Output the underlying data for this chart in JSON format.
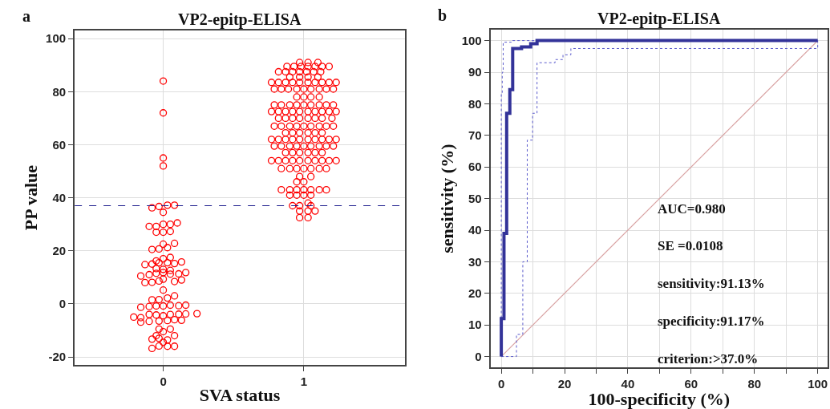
{
  "chart_data": [
    {
      "type": "scatter",
      "title": "VP2-epitp-ELISA",
      "xlabel": "SVA status",
      "ylabel": "PP value",
      "annotations": [
        "a"
      ],
      "xlim": [
        -0.63,
        1.72
      ],
      "xticks": [
        0,
        1
      ],
      "ylim": [
        -23,
        103
      ],
      "yticks": [
        -20,
        0,
        20,
        40,
        60,
        80,
        100
      ],
      "grid": true,
      "marker": "circle",
      "ref_lines": [
        {
          "axis": "y",
          "value": 37,
          "color": "#1a1a8c",
          "line_style": "dashed"
        }
      ],
      "series": [
        {
          "color": "#ff0000",
          "x": [
            0,
            0,
            0,
            0,
            -0.08,
            -0.03,
            0.03,
            0.08,
            0,
            -0.1,
            -0.05,
            0,
            0.05,
            0.1,
            -0.05,
            0,
            0.05,
            -0.08,
            -0.03,
            0,
            0.03,
            0.08,
            -0.05,
            0,
            0.05,
            -0.13,
            -0.08,
            -0.03,
            0.03,
            0.08,
            0.13,
            -0.05,
            0,
            0.05,
            -0.16,
            -0.1,
            -0.05,
            0,
            0.05,
            0.11,
            0.16,
            0,
            -0.13,
            -0.08,
            -0.03,
            0.08,
            0.13,
            0,
            0.08,
            0.03,
            -0.08,
            -0.03,
            -0.16,
            -0.1,
            -0.05,
            0,
            0.05,
            0.11,
            0.16,
            -0.21,
            -0.16,
            -0.1,
            -0.05,
            0,
            0.05,
            0.11,
            0.16,
            0.24,
            -0.16,
            -0.1,
            -0.03,
            0.03,
            0.08,
            0.13,
            -0.03,
            0,
            0.05,
            -0.05,
            0.08,
            -0.08,
            -0.03,
            0.03,
            0,
            -0.08,
            -0.03,
            0.03,
            0.08
          ],
          "values": [
            84,
            72,
            55,
            52,
            36.2,
            36.7,
            37.2,
            37.2,
            34.5,
            29.2,
            29.2,
            30,
            30,
            30.5,
            27,
            27,
            27.3,
            20.5,
            20.7,
            22.5,
            21.2,
            22.8,
            16.2,
            17,
            17.5,
            14.8,
            15,
            15.5,
            15.5,
            15.2,
            15.8,
            13.3,
            13,
            12.6,
            10.5,
            11,
            11.5,
            11.8,
            11.2,
            11.3,
            11.8,
            9.3,
            8,
            8.1,
            8.6,
            8.4,
            9,
            5.2,
            3,
            2.2,
            1.5,
            1.6,
            -1.3,
            -1,
            -0.8,
            -0.8,
            -0.5,
            -0.7,
            -0.5,
            -5,
            -5.2,
            -4,
            -4.2,
            -4.5,
            -4,
            -3.9,
            -3.8,
            -3.7,
            -6.9,
            -6.6,
            -6.5,
            -6.3,
            -6,
            -6.2,
            -9.5,
            -10.5,
            -9.5,
            -12,
            -12,
            -13.3,
            -13,
            -13.6,
            -14.5,
            -16.8,
            -15.9,
            -16,
            -16
          ]
        },
        {
          "color": "#ff0000",
          "x": [
            0.97,
            1.03,
            1.1,
            0.88,
            0.93,
            0.98,
            1.03,
            1.08,
            1.13,
            1.18,
            0.82,
            0.87,
            0.92,
            0.97,
            1.02,
            1.07,
            1.12,
            0.9,
            0.97,
            1.03,
            1.1,
            0.77,
            0.82,
            0.87,
            0.92,
            0.97,
            1.03,
            1.08,
            1.13,
            1.18,
            1.23,
            0.79,
            0.84,
            0.89,
            0.95,
            1.0,
            1.05,
            1.11,
            1.16,
            1.21,
            0.95,
            1.0,
            1.05,
            1.11,
            0.79,
            0.84,
            0.9,
            0.95,
            1.0,
            1.05,
            1.11,
            1.16,
            1.21,
            0.77,
            0.82,
            0.87,
            0.92,
            0.97,
            1.03,
            1.08,
            1.13,
            1.18,
            1.23,
            0.82,
            0.87,
            0.92,
            0.97,
            1.03,
            1.08,
            1.13,
            1.2,
            0.79,
            0.84,
            0.9,
            0.95,
            1.0,
            1.05,
            1.11,
            1.16,
            1.21,
            0.87,
            0.92,
            0.97,
            1.03,
            1.08,
            1.13,
            0.77,
            0.82,
            0.87,
            0.92,
            0.97,
            1.03,
            1.08,
            1.13,
            1.18,
            1.23,
            0.79,
            0.84,
            0.9,
            0.95,
            1.0,
            1.05,
            1.11,
            1.16,
            1.21,
            0.87,
            0.92,
            0.97,
            1.03,
            1.08,
            1.13,
            0.77,
            0.82,
            0.87,
            0.92,
            0.97,
            1.03,
            1.08,
            1.13,
            1.18,
            1.23,
            0.84,
            0.9,
            0.95,
            1.0,
            1.05,
            1.11,
            1.16,
            0.97,
            1.05,
            0.95,
            1.0,
            0.84,
            0.9,
            0.95,
            1.0,
            1.05,
            1.11,
            1.16,
            0.9,
            0.95,
            1.0,
            1.05,
            1.03,
            0.92,
            0.97,
            1.05,
            0.97,
            1.03,
            1.08,
            0.97,
            1.03
          ],
          "values": [
            91,
            91,
            91,
            89.5,
            89.5,
            89.5,
            89.5,
            89.5,
            89.5,
            89.5,
            87.5,
            87.5,
            87.5,
            87.5,
            87.5,
            87.5,
            87.5,
            85.5,
            85.5,
            85.5,
            85.5,
            83.5,
            83.5,
            83.5,
            83.5,
            83.5,
            83.5,
            83.5,
            83.5,
            83.5,
            83.5,
            81,
            81,
            81,
            81,
            81,
            81,
            81,
            81,
            81,
            78,
            78,
            78,
            78,
            75,
            75,
            75,
            75,
            75,
            75,
            75,
            75,
            75,
            72.5,
            72.5,
            72.5,
            72.5,
            72.5,
            72.5,
            72.5,
            72.5,
            72.5,
            72.5,
            70,
            70,
            70,
            70,
            70,
            70,
            70,
            70,
            67,
            67,
            67,
            67,
            67,
            67,
            67,
            67,
            67,
            64.5,
            64.5,
            64.5,
            64.5,
            64.5,
            64.5,
            62,
            62,
            62,
            62,
            62,
            62,
            62,
            62,
            62,
            62,
            59.5,
            59.5,
            59.5,
            59.5,
            59.5,
            59.5,
            59.5,
            59.5,
            59.5,
            57,
            57,
            57,
            57,
            57,
            57,
            54,
            54,
            54,
            54,
            54,
            54,
            54,
            54,
            54,
            54,
            51,
            51,
            51,
            51,
            51,
            51,
            51,
            48,
            48,
            46,
            46,
            43,
            43,
            43,
            43,
            43,
            43,
            43,
            41,
            41,
            41,
            41,
            38,
            37,
            37,
            37,
            35,
            35,
            35,
            32.5,
            32.5
          ]
        }
      ]
    },
    {
      "type": "line",
      "title": "VP2-epitp-ELISA",
      "xlabel": "100-specificity (%)",
      "ylabel": "sensitivity (%)",
      "annotations": [
        "b",
        "AUC=0.980",
        "SE =0.0108",
        "sensitivity:91.13%",
        "specificity:91.17%",
        "criterion:>37.0%"
      ],
      "xlim": [
        -3.4,
        103.1
      ],
      "xticks": [
        0,
        {
          "value": 10,
          "label": null
        },
        20,
        {
          "value": 30,
          "label": null
        },
        40,
        {
          "value": 50,
          "label": null
        },
        60,
        {
          "value": 70,
          "label": null
        },
        80,
        {
          "value": 90,
          "label": null
        },
        100
      ],
      "ylim": [
        -3.4,
        103.4
      ],
      "yticks": [
        0,
        10,
        20,
        30,
        40,
        50,
        60,
        70,
        80,
        90,
        100
      ],
      "grid": true,
      "marker": "none",
      "series": [
        {
          "color": "#d9a3a3",
          "line_style": "solid",
          "x": [
            0,
            100
          ],
          "values": [
            0,
            100
          ]
        },
        {
          "color": "#5a5acc",
          "line_style": "dotted",
          "x": [
            0,
            4.8,
            4.8,
            6.8,
            6.8,
            8.2,
            8.2,
            9.9,
            9.9,
            11.3,
            11.3,
            17,
            17,
            19.5,
            19.5,
            22,
            22,
            100,
            100
          ],
          "values": [
            0,
            0,
            7,
            7,
            30,
            30,
            68.5,
            68.5,
            77,
            77,
            93,
            93,
            94,
            94,
            95.5,
            95.5,
            97.5,
            97.5,
            100
          ]
        },
        {
          "color": "#5a5acc",
          "line_style": "dotted",
          "x": [
            0,
            0,
            0.3,
            0.3,
            0.6,
            0.6,
            3.2,
            3.2,
            100
          ],
          "values": [
            0,
            83.5,
            83.5,
            90,
            90,
            99.5,
            99.5,
            100,
            100
          ]
        },
        {
          "color": "#333399",
          "line_style": "solid",
          "x": [
            0,
            0,
            0.85,
            0.85,
            1.7,
            1.7,
            2.7,
            2.7,
            3.6,
            3.6,
            6.4,
            6.4,
            9.3,
            9.3,
            11.3,
            11.3,
            100
          ],
          "values": [
            0,
            12,
            12,
            39,
            39,
            77,
            77,
            84.5,
            84.5,
            97.5,
            97.5,
            98,
            98,
            99,
            99,
            100,
            100
          ]
        }
      ]
    }
  ]
}
